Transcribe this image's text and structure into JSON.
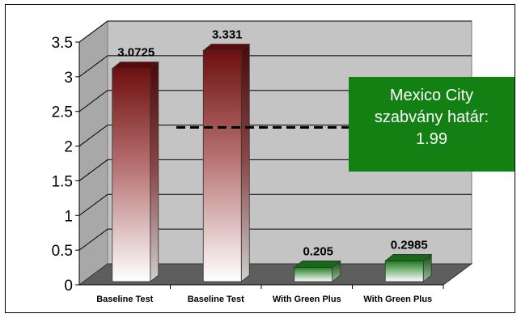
{
  "chart_data": {
    "type": "bar",
    "style": "3d",
    "categories": [
      "Baseline Test",
      "Baseline Test",
      "With Green Plus",
      "With Green Plus"
    ],
    "values": [
      3.0725,
      3.331,
      0.205,
      0.2985
    ],
    "data_labels": [
      "3.0725",
      "3.331",
      "0.205",
      "0.2985"
    ],
    "bar_colors": [
      "#7a1212",
      "#7a1212",
      "#1e7d1e",
      "#1e7d1e"
    ],
    "ylim": [
      0,
      3.5
    ],
    "yticks": [
      "0",
      "0.5",
      "1",
      "1.5",
      "2",
      "2.5",
      "3",
      "3.5"
    ],
    "grid": true,
    "reference_line": {
      "value": 1.99,
      "style": "dashed"
    },
    "annotation": {
      "lines": [
        "Mexico City",
        "szabvány határ:",
        "1.99"
      ],
      "background": "#138013"
    }
  }
}
